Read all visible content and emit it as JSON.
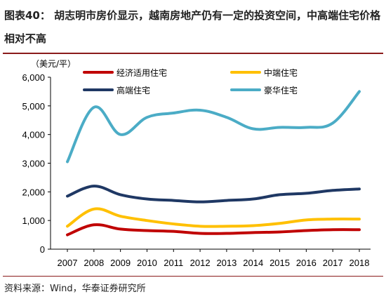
{
  "header": {
    "title": "图表40： 胡志明市房价显示，越南房地产仍有一定的投资空间，中高端住宅价格相对不高"
  },
  "footer": {
    "source": "资料来源：Wind，华泰证券研究所"
  },
  "chart_data": {
    "type": "line",
    "title": "",
    "unit_label": "（美元/平）",
    "xlabel": "",
    "ylabel": "",
    "x": [
      "2007",
      "2008",
      "2009",
      "2010",
      "2011",
      "2012",
      "2013",
      "2014",
      "2015",
      "2016",
      "2017",
      "2018"
    ],
    "ylim": [
      0,
      6000
    ],
    "yticks": [
      "0",
      "1,000",
      "2,000",
      "3,000",
      "4,000",
      "5,000",
      "6,000"
    ],
    "ytick_values": [
      0,
      1000,
      2000,
      3000,
      4000,
      5000,
      6000
    ],
    "grid": false,
    "legend_position": "top",
    "series": [
      {
        "name": "经济适用住宅",
        "color": "#c00000",
        "values": [
          500,
          850,
          700,
          650,
          620,
          550,
          550,
          580,
          600,
          650,
          680,
          680
        ]
      },
      {
        "name": "中端住宅",
        "color": "#ffc000",
        "values": [
          800,
          1400,
          1150,
          1000,
          880,
          800,
          800,
          820,
          900,
          1020,
          1050,
          1050
        ]
      },
      {
        "name": "高端住宅",
        "color": "#1f3864",
        "values": [
          1850,
          2200,
          1900,
          1750,
          1700,
          1650,
          1700,
          1750,
          1900,
          1950,
          2050,
          2100
        ]
      },
      {
        "name": "豪华住宅",
        "color": "#4bacc6",
        "values": [
          3050,
          4950,
          4000,
          4600,
          4750,
          4850,
          4600,
          4200,
          4250,
          4250,
          4400,
          5500
        ]
      }
    ]
  }
}
